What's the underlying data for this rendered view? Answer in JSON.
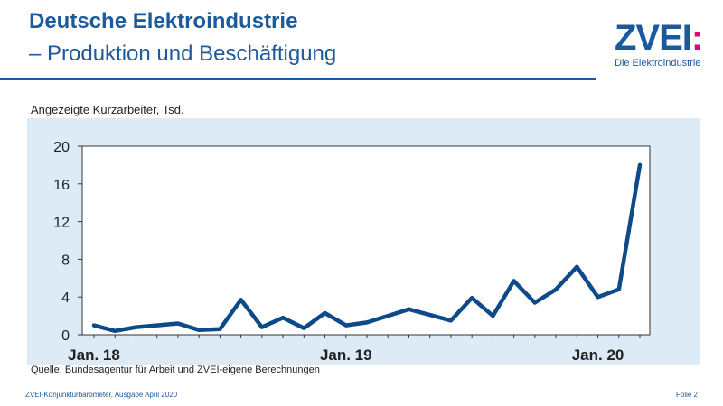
{
  "header": {
    "title": "Deutsche Elektroindustrie",
    "subtitle": "– Produktion und Beschäftigung"
  },
  "logo": {
    "mark": "ZVEI",
    "mark_colon": ":",
    "tagline": "Die Elektroindustrie"
  },
  "chart_caption": "Angezeigte Kurzarbeiter, Tsd.",
  "source_note": "Quelle: Bundesagentur für Arbeit und ZVEI-eigene Berechnungen",
  "footer": {
    "left": "ZVEI-Konjunkturbarometer, Ausgabe April 2020",
    "right": "Folie 2"
  },
  "colors": {
    "brand_blue": "#1b5a9c",
    "line": "#0d4a8a",
    "panel_bg": "#dcebf6",
    "accent_magenta": "#e3007a"
  },
  "chart_data": {
    "type": "line",
    "x": [
      "2018-01",
      "2018-02",
      "2018-03",
      "2018-04",
      "2018-05",
      "2018-06",
      "2018-07",
      "2018-08",
      "2018-09",
      "2018-10",
      "2018-11",
      "2018-12",
      "2019-01",
      "2019-02",
      "2019-03",
      "2019-04",
      "2019-05",
      "2019-06",
      "2019-07",
      "2019-08",
      "2019-09",
      "2019-10",
      "2019-11",
      "2019-12",
      "2020-01",
      "2020-02",
      "2020-03"
    ],
    "values": [
      1.0,
      0.4,
      0.8,
      1.0,
      1.2,
      0.5,
      0.6,
      3.7,
      0.8,
      1.8,
      0.7,
      2.3,
      1.0,
      1.3,
      2.0,
      2.7,
      2.1,
      1.5,
      3.9,
      2.0,
      5.7,
      3.4,
      4.8,
      7.2,
      4.0,
      4.8,
      18.0
    ],
    "x_tick_labels": [
      "Jan. 18",
      "Jan. 19",
      "Jan. 20"
    ],
    "x_tick_positions": [
      "2018-01",
      "2019-01",
      "2020-01"
    ],
    "y_ticks": [
      0,
      4,
      8,
      12,
      16,
      20
    ],
    "ylim": [
      0,
      20
    ],
    "grid": false,
    "legend": "none"
  }
}
